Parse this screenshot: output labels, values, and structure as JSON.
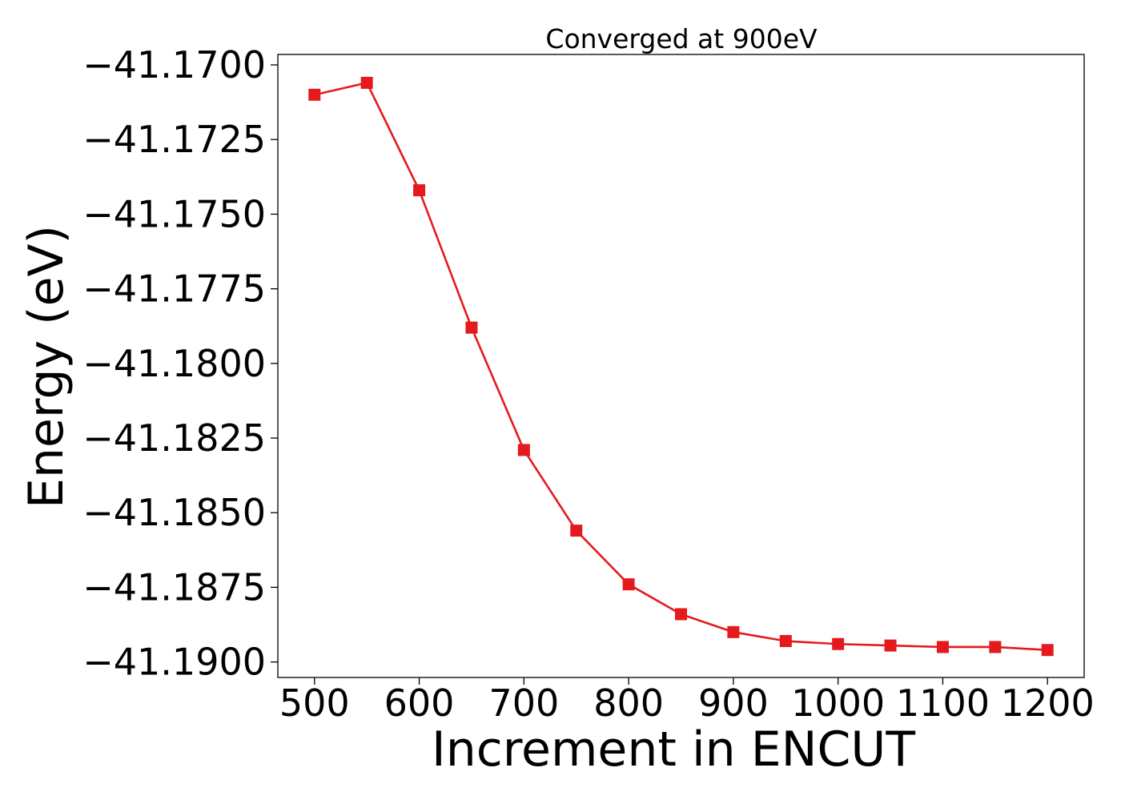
{
  "chart_data": {
    "type": "line",
    "title": "Converged at 900eV",
    "xlabel": "Increment in ENCUT",
    "ylabel": "Energy (eV)",
    "x": [
      500,
      550,
      600,
      650,
      700,
      750,
      800,
      850,
      900,
      950,
      1000,
      1050,
      1100,
      1150,
      1200
    ],
    "series": [
      {
        "values": [
          -41.171,
          -41.1706,
          -41.1742,
          -41.1788,
          -41.1829,
          -41.1856,
          -41.1874,
          -41.1884,
          -41.189,
          -41.1893,
          -41.1894,
          -41.18945,
          -41.1895,
          -41.1895,
          -41.1896
        ],
        "color": "#e41a1c",
        "marker": "square"
      }
    ],
    "xlim": [
      465,
      1235
    ],
    "ylim": [
      -41.19052,
      -41.16965
    ],
    "xticks": [
      500,
      600,
      700,
      800,
      900,
      1000,
      1100,
      1200
    ],
    "xtick_labels": [
      "500",
      "600",
      "700",
      "800",
      "900",
      "1000",
      "1100",
      "1200"
    ],
    "yticks": [
      -41.17,
      -41.1725,
      -41.175,
      -41.1775,
      -41.18,
      -41.1825,
      -41.185,
      -41.1875,
      -41.19
    ],
    "ytick_labels": [
      "−41.1700",
      "−41.1725",
      "−41.1750",
      "−41.1775",
      "−41.1800",
      "−41.1825",
      "−41.1850",
      "−41.1875",
      "−41.1900"
    ],
    "grid": false,
    "legend": "none"
  }
}
